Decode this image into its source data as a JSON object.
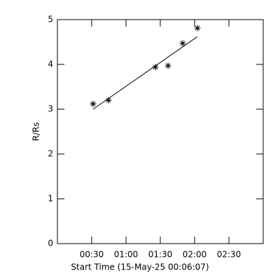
{
  "chart_data": {
    "type": "scatter",
    "x_label": "Start Time (15-May-25 00:06:07)",
    "y_label": "R/Rs",
    "xlim": [
      0,
      180
    ],
    "ylim": [
      0,
      5
    ],
    "xticks": [
      {
        "value": 30,
        "label": "00:30"
      },
      {
        "value": 60,
        "label": "01:00"
      },
      {
        "value": 90,
        "label": "01:30"
      },
      {
        "value": 120,
        "label": "02:00"
      },
      {
        "value": 150,
        "label": "02:30"
      }
    ],
    "yticks": [
      0,
      1,
      2,
      3,
      4,
      5
    ],
    "color": "#000000",
    "points": {
      "marker": "asterisk",
      "x": [
        31.2,
        44.7,
        85.7,
        96.8,
        109.6,
        122.5
      ],
      "y": [
        3.12,
        3.2,
        3.94,
        3.97,
        4.47,
        4.81
      ]
    },
    "fit": {
      "x": [
        31.2,
        122.5
      ],
      "y": [
        3.0,
        4.62
      ]
    }
  }
}
